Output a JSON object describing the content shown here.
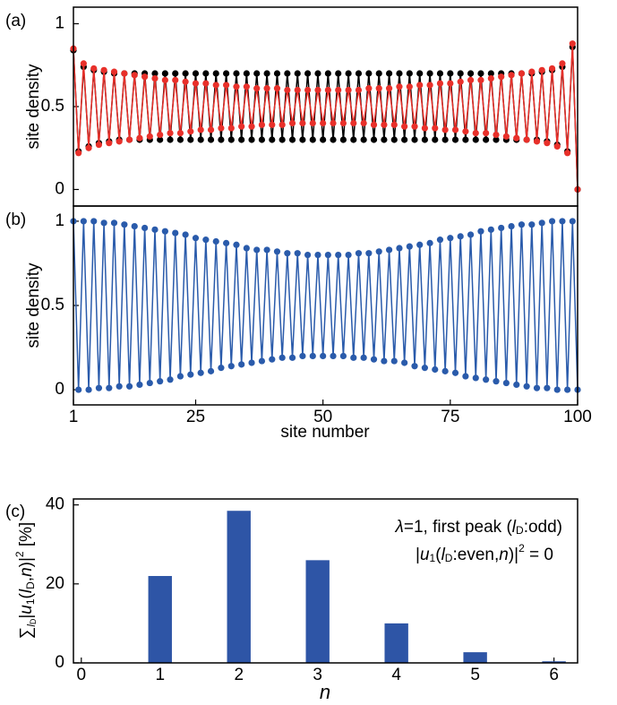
{
  "chart_data": [
    {
      "type": "line",
      "panel_label": "(a)",
      "ylabel": "site density",
      "x": [
        1,
        2,
        3,
        4,
        5,
        6,
        7,
        8,
        9,
        10,
        11,
        12,
        13,
        14,
        15,
        16,
        17,
        18,
        19,
        20,
        21,
        22,
        23,
        24,
        25,
        26,
        27,
        28,
        29,
        30,
        31,
        32,
        33,
        34,
        35,
        36,
        37,
        38,
        39,
        40,
        41,
        42,
        43,
        44,
        45,
        46,
        47,
        48,
        49,
        50,
        51,
        52,
        53,
        54,
        55,
        56,
        57,
        58,
        59,
        60,
        61,
        62,
        63,
        64,
        65,
        66,
        67,
        68,
        69,
        70,
        71,
        72,
        73,
        74,
        75,
        76,
        77,
        78,
        79,
        80,
        81,
        82,
        83,
        84,
        85,
        86,
        87,
        88,
        89,
        90,
        91,
        92,
        93,
        94,
        95,
        96,
        97,
        98,
        99,
        100
      ],
      "xlim": [
        1,
        100
      ],
      "ylim": [
        -0.1,
        1.1
      ],
      "yticks": [
        0,
        0.5,
        1
      ],
      "series": [
        {
          "color": "#000000",
          "values": [
            0.84,
            0.23,
            0.74,
            0.26,
            0.72,
            0.28,
            0.71,
            0.29,
            0.7,
            0.3,
            0.7,
            0.3,
            0.7,
            0.3,
            0.7,
            0.3,
            0.7,
            0.3,
            0.7,
            0.3,
            0.7,
            0.3,
            0.7,
            0.3,
            0.7,
            0.3,
            0.7,
            0.3,
            0.7,
            0.3,
            0.7,
            0.3,
            0.7,
            0.3,
            0.7,
            0.3,
            0.7,
            0.3,
            0.7,
            0.3,
            0.7,
            0.3,
            0.7,
            0.3,
            0.7,
            0.3,
            0.7,
            0.3,
            0.7,
            0.3,
            0.7,
            0.3,
            0.7,
            0.3,
            0.7,
            0.3,
            0.7,
            0.3,
            0.7,
            0.3,
            0.7,
            0.3,
            0.7,
            0.3,
            0.7,
            0.3,
            0.7,
            0.3,
            0.7,
            0.3,
            0.7,
            0.3,
            0.7,
            0.3,
            0.7,
            0.3,
            0.7,
            0.3,
            0.7,
            0.3,
            0.7,
            0.3,
            0.7,
            0.3,
            0.7,
            0.3,
            0.7,
            0.3,
            0.7,
            0.3,
            0.7,
            0.3,
            0.71,
            0.29,
            0.72,
            0.27,
            0.74,
            0.23,
            0.86,
            0.0
          ]
        },
        {
          "color": "#e8302a",
          "values": [
            0.85,
            0.22,
            0.76,
            0.25,
            0.73,
            0.27,
            0.72,
            0.28,
            0.71,
            0.29,
            0.7,
            0.3,
            0.69,
            0.31,
            0.68,
            0.32,
            0.67,
            0.33,
            0.66,
            0.34,
            0.66,
            0.34,
            0.65,
            0.35,
            0.64,
            0.36,
            0.64,
            0.36,
            0.63,
            0.37,
            0.63,
            0.37,
            0.62,
            0.38,
            0.62,
            0.38,
            0.61,
            0.39,
            0.61,
            0.39,
            0.61,
            0.39,
            0.6,
            0.4,
            0.6,
            0.4,
            0.6,
            0.4,
            0.6,
            0.4,
            0.6,
            0.4,
            0.6,
            0.4,
            0.6,
            0.4,
            0.6,
            0.4,
            0.61,
            0.39,
            0.61,
            0.39,
            0.61,
            0.39,
            0.62,
            0.38,
            0.62,
            0.38,
            0.63,
            0.37,
            0.63,
            0.37,
            0.64,
            0.36,
            0.64,
            0.36,
            0.65,
            0.35,
            0.66,
            0.34,
            0.66,
            0.34,
            0.67,
            0.33,
            0.68,
            0.32,
            0.69,
            0.31,
            0.7,
            0.3,
            0.71,
            0.29,
            0.72,
            0.28,
            0.73,
            0.26,
            0.76,
            0.22,
            0.88,
            0.0
          ]
        }
      ]
    },
    {
      "type": "line",
      "panel_label": "(b)",
      "ylabel": "site density",
      "xlabel": "site number",
      "x": [
        1,
        2,
        3,
        4,
        5,
        6,
        7,
        8,
        9,
        10,
        11,
        12,
        13,
        14,
        15,
        16,
        17,
        18,
        19,
        20,
        21,
        22,
        23,
        24,
        25,
        26,
        27,
        28,
        29,
        30,
        31,
        32,
        33,
        34,
        35,
        36,
        37,
        38,
        39,
        40,
        41,
        42,
        43,
        44,
        45,
        46,
        47,
        48,
        49,
        50,
        51,
        52,
        53,
        54,
        55,
        56,
        57,
        58,
        59,
        60,
        61,
        62,
        63,
        64,
        65,
        66,
        67,
        68,
        69,
        70,
        71,
        72,
        73,
        74,
        75,
        76,
        77,
        78,
        79,
        80,
        81,
        82,
        83,
        84,
        85,
        86,
        87,
        88,
        89,
        90,
        91,
        92,
        93,
        94,
        95,
        96,
        97,
        98,
        99,
        100
      ],
      "xlim": [
        1,
        100
      ],
      "xticks": [
        1,
        25,
        50,
        75,
        100
      ],
      "ylim": [
        -0.09,
        1.09
      ],
      "yticks": [
        0,
        0.5,
        1
      ],
      "series": [
        {
          "color": "#2a5bab",
          "values": [
            1.0,
            0.0,
            1.0,
            0.0,
            1.0,
            0.01,
            0.99,
            0.01,
            0.99,
            0.02,
            0.98,
            0.02,
            0.97,
            0.03,
            0.96,
            0.04,
            0.95,
            0.05,
            0.94,
            0.06,
            0.93,
            0.08,
            0.92,
            0.09,
            0.9,
            0.1,
            0.89,
            0.11,
            0.88,
            0.13,
            0.87,
            0.14,
            0.86,
            0.15,
            0.84,
            0.16,
            0.83,
            0.17,
            0.83,
            0.18,
            0.82,
            0.19,
            0.81,
            0.19,
            0.81,
            0.2,
            0.8,
            0.2,
            0.8,
            0.2,
            0.8,
            0.2,
            0.8,
            0.2,
            0.8,
            0.19,
            0.81,
            0.19,
            0.81,
            0.18,
            0.82,
            0.17,
            0.83,
            0.17,
            0.84,
            0.16,
            0.85,
            0.14,
            0.86,
            0.13,
            0.87,
            0.12,
            0.89,
            0.11,
            0.9,
            0.1,
            0.91,
            0.08,
            0.92,
            0.07,
            0.94,
            0.06,
            0.95,
            0.05,
            0.96,
            0.04,
            0.97,
            0.03,
            0.98,
            0.02,
            0.98,
            0.01,
            0.99,
            0.01,
            1.0,
            0.0,
            1.0,
            0.0,
            1.0,
            0.0
          ]
        }
      ]
    },
    {
      "type": "bar",
      "panel_label": "(c)",
      "ylabel_parts": [
        "∑",
        "l",
        "D",
        "|",
        "u",
        "1",
        "(",
        "l",
        "D",
        ",",
        "n",
        ")|",
        "2",
        " [%]"
      ],
      "xlabel": "n",
      "annotations": [
        [
          "λ",
          "=1, first peak (",
          "l",
          "D",
          ":odd)"
        ],
        [
          "|",
          "u",
          "1",
          "(",
          "l",
          "D",
          ":even,",
          "n",
          ")|",
          "2",
          " = 0"
        ]
      ],
      "x": [
        1,
        2,
        3,
        4,
        5,
        6
      ],
      "values": [
        22,
        38.5,
        26,
        10,
        2.7,
        0.4
      ],
      "color": "#2e55a6",
      "xlim": [
        -0.1,
        6.3
      ],
      "xticks": [
        0,
        1,
        2,
        3,
        4,
        5,
        6
      ],
      "ylim": [
        0,
        41.5
      ],
      "yticks": [
        0,
        20,
        40
      ]
    }
  ]
}
